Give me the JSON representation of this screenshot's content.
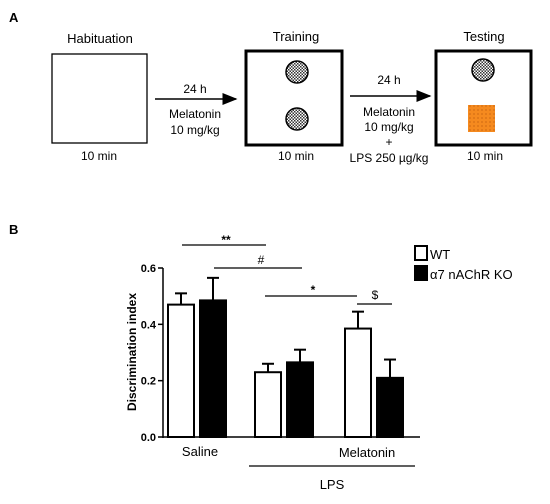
{
  "panel_a": {
    "label": "A",
    "phases": [
      {
        "title": "Habituation",
        "duration": "10 min"
      },
      {
        "title": "Training",
        "duration": "10 min"
      },
      {
        "title": "Testing",
        "duration": "10 min"
      }
    ],
    "arrow1": {
      "time": "24 h",
      "line1": "Melatonin",
      "line2": "10 mg/kg"
    },
    "arrow2": {
      "time": "24 h",
      "line1": "Melatonin",
      "line2": "10 mg/kg",
      "line3": "+",
      "line4": "LPS 250 µg/kg"
    },
    "colors": {
      "box_border": "#000000",
      "novel_object": "#f58a1f",
      "familiar_object": "#555555"
    }
  },
  "panel_b": {
    "label": "B",
    "group_labels": {
      "saline": "Saline",
      "melatonin": "Melatonin",
      "lps": "LPS"
    },
    "significance": {
      "double_star": "**",
      "hash": "#",
      "star": "*",
      "dollar": "$"
    }
  },
  "chart_data": {
    "type": "bar",
    "ylabel": "Discrimination index",
    "ylim": [
      0,
      0.6
    ],
    "yticks": [
      "0.0",
      "0.2",
      "0.4",
      "0.6"
    ],
    "legend": {
      "placement": "top-right"
    },
    "categories": [
      "Saline",
      "LPS",
      "LPS + Melatonin"
    ],
    "series": [
      {
        "name": "WT",
        "values": [
          0.47,
          0.23,
          0.385
        ],
        "errors": [
          0.04,
          0.03,
          0.06
        ],
        "color": "#ffffff"
      },
      {
        "name": "α7 nAChR KO",
        "values": [
          0.485,
          0.265,
          0.21
        ],
        "errors": [
          0.08,
          0.045,
          0.065
        ],
        "color": "#000000"
      }
    ]
  }
}
